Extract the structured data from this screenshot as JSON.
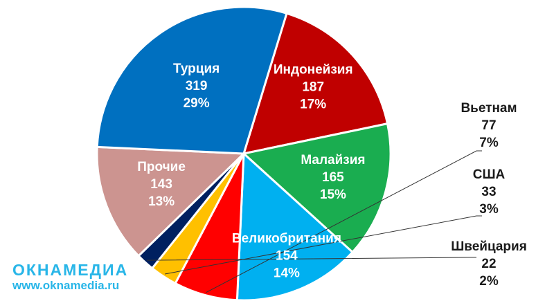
{
  "chart_data": {
    "type": "pie",
    "title": "",
    "slices": [
      {
        "name": "Индонейзия",
        "value": 187,
        "percent": "17%",
        "color": "#c00000",
        "label": "inside"
      },
      {
        "name": "Малайзия",
        "value": 165,
        "percent": "15%",
        "color": "#1aad50",
        "label": "inside"
      },
      {
        "name": "Великобритания",
        "value": 154,
        "percent": "14%",
        "color": "#00b0f0",
        "label": "inside"
      },
      {
        "name": "Вьетнам",
        "value": 77,
        "percent": "7%",
        "color": "#ff0000",
        "label": "outside"
      },
      {
        "name": "США",
        "value": 33,
        "percent": "3%",
        "color": "#ffc000",
        "label": "outside"
      },
      {
        "name": "Швейцария",
        "value": 22,
        "percent": "2%",
        "color": "#002060",
        "label": "outside"
      },
      {
        "name": "Прочие",
        "value": 143,
        "percent": "13%",
        "color": "#cc9490",
        "label": "inside"
      },
      {
        "name": "Турция",
        "value": 319,
        "percent": "29%",
        "color": "#0070c0",
        "label": "inside"
      }
    ]
  },
  "watermark": {
    "brand": "ОКНАМЕДИА",
    "url": "www.oknamedia.ru",
    "color": "#29b6e8"
  }
}
